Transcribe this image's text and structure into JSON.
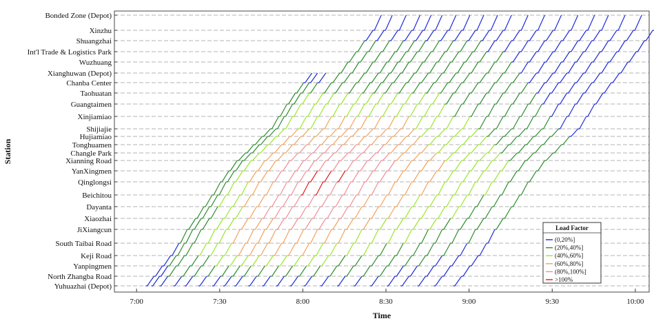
{
  "chart_data": {
    "type": "line",
    "title": "",
    "xlabel": "Time",
    "ylabel": "Station",
    "x_ticks": [
      "7:00",
      "7:30",
      "8:00",
      "8:30",
      "9:00",
      "9:30",
      "10:00"
    ],
    "xlim": [
      "6:52",
      "10:05"
    ],
    "grid": "horizontal dashed lines at each station",
    "stations": [
      "Bonded Zone (Depot)",
      "Xinzhu",
      "Shuangzhai",
      "Int'l Trade & Logistics Park",
      "Wuzhuang",
      "Xianghuwan (Depot)",
      "Chanba Center",
      "Taohuatan",
      "Guangtaimen",
      "Xinjiamiao",
      "Shijiajie",
      "Hujiamiao",
      "Tonghuamen",
      "Changle Park",
      "Xianning Road",
      "YanXingmen",
      "Qinglongsi",
      "Beichitou",
      "Dayanta",
      "Xiaozhai",
      "JiXiangcun",
      "South Taibai Road",
      "Keji Road",
      "Yanpingmen",
      "North Zhangba Road",
      "Yuhuazhai (Depot)"
    ],
    "legend": {
      "title": "Load Factor",
      "placement": "bottom-right",
      "entries": [
        {
          "label": "(0,20%]",
          "color": "#1f2bd6"
        },
        {
          "label": "(20%,40%]",
          "color": "#2e8b2e"
        },
        {
          "label": "(40%,60%]",
          "color": "#9ae62a"
        },
        {
          "label": "(60%,80%]",
          "color": "#f3a15a"
        },
        {
          "label": "(80%,100%]",
          "color": "#f08c96"
        },
        {
          "label": ">100%",
          "color": "#e01b1b"
        }
      ]
    },
    "trains": [
      {
        "start": "7:03",
        "end_station": "Xianghuwan (Depot)",
        "loads": [
          0,
          0,
          0,
          0,
          1,
          1,
          1,
          1,
          1,
          1,
          1,
          1,
          1,
          1,
          1,
          1,
          1,
          1,
          1,
          0,
          0,
          0,
          0,
          0
        ]
      },
      {
        "start": "7:05",
        "end_station": "Xianghuwan (Depot)",
        "loads": [
          0,
          0,
          1,
          1,
          1,
          1,
          1,
          1,
          1,
          1,
          1,
          1,
          1,
          1,
          1,
          1,
          1,
          1,
          1,
          0,
          0,
          0,
          0,
          0
        ]
      },
      {
        "start": "7:08",
        "end_station": "Xianghuwan (Depot)",
        "loads": [
          0,
          1,
          1,
          1,
          1,
          1,
          1,
          2,
          2,
          2,
          2,
          2,
          2,
          2,
          2,
          2,
          2,
          2,
          1,
          0,
          0,
          0,
          0,
          0
        ]
      },
      {
        "start": "7:13",
        "end_station": "Bonded Zone (Depot)",
        "loads": [
          0,
          1,
          1,
          2,
          2,
          2,
          2,
          2,
          2,
          3,
          3,
          3,
          3,
          3,
          3,
          2,
          2,
          2,
          1,
          1,
          1,
          1,
          1,
          0,
          0
        ]
      },
      {
        "start": "7:17",
        "end_station": "Bonded Zone (Depot)",
        "loads": [
          0,
          1,
          1,
          2,
          2,
          2,
          2,
          3,
          3,
          3,
          3,
          3,
          3,
          3,
          3,
          2,
          2,
          2,
          1,
          1,
          1,
          1,
          1,
          0,
          0
        ]
      },
      {
        "start": "7:22",
        "end_station": "Bonded Zone (Depot)",
        "loads": [
          0,
          1,
          2,
          2,
          3,
          3,
          3,
          3,
          3,
          4,
          4,
          4,
          4,
          3,
          3,
          3,
          2,
          2,
          1,
          1,
          1,
          1,
          1,
          0,
          0
        ]
      },
      {
        "start": "7:27",
        "end_station": "Bonded Zone (Depot)",
        "loads": [
          0,
          1,
          2,
          3,
          3,
          3,
          4,
          4,
          4,
          4,
          4,
          4,
          4,
          3,
          3,
          3,
          2,
          2,
          1,
          1,
          1,
          1,
          1,
          0,
          0
        ]
      },
      {
        "start": "7:31",
        "end_station": "Bonded Zone (Depot)",
        "loads": [
          0,
          1,
          2,
          3,
          3,
          3,
          4,
          4,
          4,
          4,
          4,
          4,
          4,
          3,
          3,
          3,
          2,
          2,
          1,
          1,
          1,
          1,
          1,
          0,
          0
        ]
      },
      {
        "start": "7:35",
        "end_station": "Bonded Zone (Depot)",
        "loads": [
          0,
          1,
          2,
          3,
          3,
          4,
          4,
          4,
          5,
          5,
          4,
          4,
          4,
          3,
          3,
          3,
          2,
          2,
          1,
          1,
          1,
          1,
          1,
          0,
          0
        ]
      },
      {
        "start": "7:40",
        "end_station": "Bonded Zone (Depot)",
        "loads": [
          0,
          1,
          2,
          3,
          3,
          4,
          4,
          4,
          5,
          5,
          4,
          4,
          4,
          3,
          3,
          3,
          2,
          2,
          1,
          1,
          1,
          1,
          1,
          0,
          0
        ]
      },
      {
        "start": "7:45",
        "end_station": "Bonded Zone (Depot)",
        "loads": [
          0,
          1,
          2,
          3,
          3,
          4,
          4,
          4,
          4,
          5,
          4,
          4,
          4,
          3,
          3,
          3,
          2,
          2,
          1,
          1,
          1,
          1,
          1,
          0,
          0
        ]
      },
      {
        "start": "7:50",
        "end_station": "Bonded Zone (Depot)",
        "loads": [
          0,
          1,
          2,
          3,
          3,
          4,
          4,
          4,
          4,
          4,
          4,
          4,
          4,
          3,
          3,
          3,
          2,
          2,
          1,
          1,
          1,
          1,
          1,
          0,
          0
        ]
      },
      {
        "start": "7:55",
        "end_station": "Bonded Zone (Depot)",
        "loads": [
          0,
          1,
          2,
          2,
          3,
          3,
          4,
          4,
          4,
          4,
          4,
          4,
          3,
          3,
          3,
          2,
          2,
          2,
          1,
          1,
          1,
          1,
          1,
          0,
          0
        ]
      },
      {
        "start": "8:00",
        "end_station": "Bonded Zone (Depot)",
        "loads": [
          0,
          1,
          2,
          2,
          3,
          3,
          3,
          3,
          4,
          4,
          4,
          3,
          3,
          3,
          2,
          2,
          2,
          1,
          1,
          1,
          1,
          1,
          0,
          0,
          0
        ]
      },
      {
        "start": "8:06",
        "end_station": "Bonded Zone (Depot)",
        "loads": [
          0,
          1,
          1,
          2,
          2,
          3,
          3,
          3,
          3,
          3,
          3,
          3,
          3,
          2,
          2,
          2,
          1,
          1,
          1,
          1,
          1,
          1,
          0,
          0,
          0
        ]
      },
      {
        "start": "8:12",
        "end_station": "Bonded Zone (Depot)",
        "loads": [
          0,
          1,
          1,
          2,
          2,
          2,
          3,
          3,
          3,
          3,
          3,
          3,
          2,
          2,
          2,
          2,
          1,
          1,
          1,
          1,
          1,
          0,
          0,
          0,
          0
        ]
      },
      {
        "start": "8:18",
        "end_station": "Bonded Zone (Depot)",
        "loads": [
          0,
          1,
          1,
          1,
          2,
          2,
          2,
          2,
          3,
          3,
          3,
          2,
          2,
          2,
          2,
          1,
          1,
          1,
          1,
          1,
          0,
          0,
          0,
          0,
          0
        ]
      },
      {
        "start": "8:24",
        "end_station": "Bonded Zone (Depot)",
        "loads": [
          0,
          1,
          1,
          1,
          2,
          2,
          2,
          2,
          2,
          2,
          2,
          2,
          2,
          2,
          1,
          1,
          1,
          1,
          1,
          0,
          0,
          0,
          0,
          0,
          0
        ]
      },
      {
        "start": "8:30",
        "end_station": "Bonded Zone (Depot)",
        "loads": [
          0,
          0,
          1,
          1,
          1,
          2,
          2,
          2,
          2,
          2,
          2,
          2,
          2,
          1,
          1,
          1,
          1,
          1,
          0,
          0,
          0,
          0,
          0,
          0,
          0
        ]
      },
      {
        "start": "8:35",
        "end_station": "Bonded Zone (Depot)",
        "loads": [
          0,
          0,
          1,
          1,
          1,
          1,
          2,
          2,
          2,
          2,
          2,
          2,
          1,
          1,
          1,
          1,
          1,
          0,
          0,
          0,
          0,
          0,
          0,
          0,
          0
        ]
      },
      {
        "start": "8:41",
        "end_station": "Bonded Zone (Depot)",
        "loads": [
          0,
          0,
          0,
          1,
          1,
          1,
          1,
          1,
          2,
          2,
          2,
          1,
          1,
          1,
          1,
          1,
          0,
          0,
          0,
          0,
          0,
          0,
          0,
          0,
          0
        ]
      },
      {
        "start": "8:47",
        "end_station": "Bonded Zone (Depot)",
        "loads": [
          0,
          0,
          0,
          0,
          1,
          1,
          1,
          1,
          1,
          1,
          1,
          1,
          1,
          1,
          1,
          0,
          0,
          0,
          0,
          0,
          0,
          0,
          0,
          0,
          0
        ]
      },
      {
        "start": "8:54",
        "end_station": "Bonded Zone (Depot)",
        "loads": [
          0,
          0,
          0,
          0,
          0,
          1,
          1,
          1,
          1,
          1,
          1,
          1,
          1,
          1,
          0,
          0,
          0,
          0,
          0,
          0,
          0,
          0,
          0,
          0,
          0
        ]
      }
    ]
  }
}
